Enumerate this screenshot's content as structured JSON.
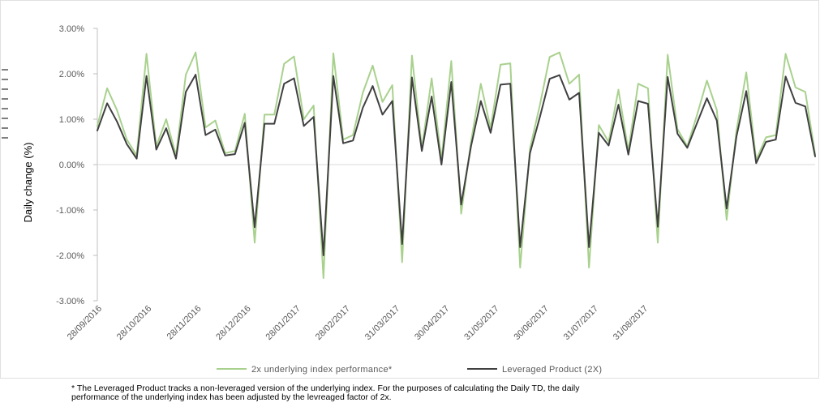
{
  "chart_data": {
    "type": "line",
    "ylabel": "Daily change (%)",
    "ylim": [
      -3,
      3
    ],
    "y_ticks": [
      "3.00%",
      "2.00%",
      "1.00%",
      "0.00%",
      "-1.00%",
      "-2.00%",
      "-3.00%"
    ],
    "x_tick_labels": [
      "28/09/2016",
      "28/10/2016",
      "28/11/2016",
      "28/12/2016",
      "28/01/2017",
      "28/02/2017",
      "31/03/2017",
      "30/04/2017",
      "31/05/2017",
      "30/06/2017",
      "31/07/2017",
      "31/08/2017"
    ],
    "grid": false,
    "legend_position": "bottom",
    "series": [
      {
        "name": "2x underlying index performance*",
        "color": "#a9d18e",
        "values": [
          0.85,
          1.68,
          1.2,
          0.55,
          0.2,
          2.44,
          0.4,
          1.0,
          0.2,
          1.98,
          2.47,
          0.82,
          0.97,
          0.25,
          0.3,
          1.12,
          -1.72,
          1.1,
          1.1,
          2.22,
          2.38,
          1.0,
          1.3,
          -2.5,
          2.45,
          0.55,
          0.65,
          1.58,
          2.18,
          1.38,
          1.75,
          -2.15,
          2.4,
          0.35,
          1.9,
          0.1,
          2.28,
          -1.08,
          0.5,
          1.78,
          0.8,
          2.2,
          2.23,
          -2.27,
          0.35,
          1.3,
          2.37,
          2.47,
          1.78,
          1.98,
          -2.27,
          0.87,
          0.5,
          1.65,
          0.3,
          1.78,
          1.68,
          -1.72,
          2.42,
          0.78,
          0.4,
          1.1,
          1.85,
          1.2,
          -1.22,
          0.75,
          2.03,
          0.1,
          0.6,
          0.65,
          2.44,
          1.7,
          1.6,
          0.22
        ]
      },
      {
        "name": "Leveraged Product (2X)",
        "color": "#404040",
        "values": [
          0.75,
          1.35,
          0.95,
          0.45,
          0.13,
          1.95,
          0.33,
          0.8,
          0.13,
          1.6,
          1.98,
          0.65,
          0.77,
          0.2,
          0.23,
          0.92,
          -1.38,
          0.9,
          0.9,
          1.78,
          1.9,
          0.85,
          1.05,
          -2.0,
          1.95,
          0.47,
          0.53,
          1.25,
          1.73,
          1.1,
          1.4,
          -1.75,
          1.92,
          0.3,
          1.5,
          0.0,
          1.82,
          -0.88,
          0.4,
          1.4,
          0.7,
          1.76,
          1.78,
          -1.82,
          0.25,
          1.04,
          1.89,
          1.97,
          1.43,
          1.58,
          -1.82,
          0.7,
          0.42,
          1.32,
          0.22,
          1.4,
          1.34,
          -1.37,
          1.93,
          0.68,
          0.37,
          0.92,
          1.46,
          0.97,
          -0.97,
          0.62,
          1.62,
          0.03,
          0.5,
          0.55,
          1.94,
          1.36,
          1.28,
          0.18
        ]
      }
    ]
  },
  "footnote": {
    "line1": "* The Leveraged Product tracks a non-leveraged version of the underlying index. For the purposes of calculating the Daily  TD,  the daily",
    "line2": "performance of the underlying index has been adjusted by the levreaged factor of 2x."
  }
}
